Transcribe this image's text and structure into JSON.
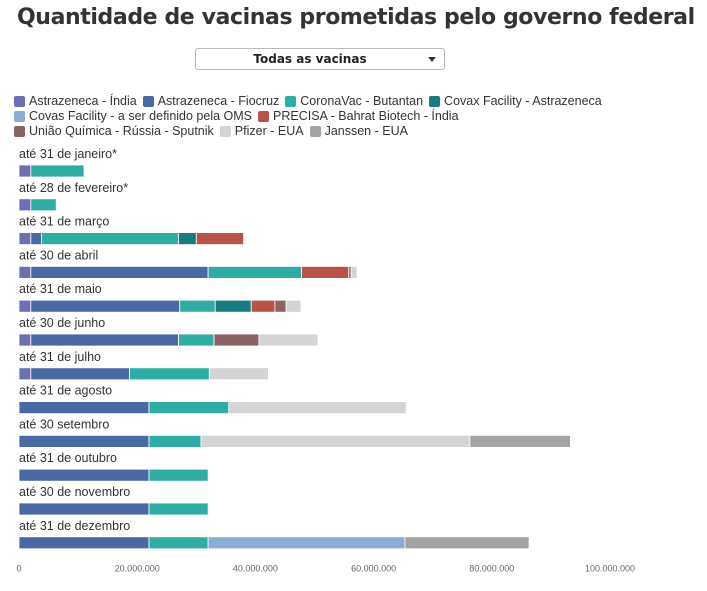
{
  "title": "Quantidade de vacinas prometidas pelo governo federal",
  "dropdown": {
    "selected": "Todas as vacinas"
  },
  "chart_data": {
    "type": "bar",
    "orientation": "horizontal",
    "stacked": true,
    "title": "Quantidade de vacinas prometidas pelo governo federal",
    "xlim": [
      0,
      100000000
    ],
    "ticks": [
      {
        "value": 0,
        "label": "0"
      },
      {
        "value": 20000000,
        "label": "20.000.000"
      },
      {
        "value": 40000000,
        "label": "40.000.000"
      },
      {
        "value": 60000000,
        "label": "60.000.000"
      },
      {
        "value": 80000000,
        "label": "80.000.000"
      },
      {
        "value": 100000000,
        "label": "100.000.000"
      }
    ],
    "grid": false,
    "legend_position": "top",
    "categories": [
      "até 31 de janeiro*",
      "até 28 de fevereiro*",
      "até 31 de março",
      "até 30 de abril",
      "até 31 de maio",
      "até 30 de junho",
      "até 31 de julho",
      "até 31 de agosto",
      "até 30 setembro",
      "até 31 de outubro",
      "até 30 de novembro",
      "até 31 de dezembro"
    ],
    "series": [
      {
        "name": "Astrazeneca - Índia",
        "color": "#6c6fb2",
        "values": [
          2000000,
          2000000,
          2000000,
          2000000,
          2000000,
          2000000,
          2000000,
          0,
          0,
          0,
          0,
          0
        ]
      },
      {
        "name": "Astrazeneca - Fiocruz",
        "color": "#4a69a3",
        "values": [
          0,
          0,
          1800000,
          30000000,
          25200000,
          25000000,
          16700000,
          22000000,
          22000000,
          22000000,
          22000000,
          22000000
        ]
      },
      {
        "name": "CoronaVac - Butantan",
        "color": "#2fada5",
        "values": [
          9000000,
          4300000,
          23200000,
          15800000,
          6000000,
          6000000,
          13500000,
          13500000,
          8800000,
          10000000,
          10000000,
          10000000
        ]
      },
      {
        "name": "Covax Facility - Astrazeneca",
        "color": "#177b80",
        "values": [
          0,
          0,
          3000000,
          0,
          6100000,
          0,
          0,
          0,
          0,
          0,
          0,
          0
        ]
      },
      {
        "name": "Covas Facility - a ser definido pela OMS",
        "color": "#8badd4",
        "values": [
          0,
          0,
          0,
          0,
          0,
          0,
          0,
          0,
          0,
          0,
          0,
          33300000
        ]
      },
      {
        "name": "PRECISA - Bahrat Biotech - Índia",
        "color": "#b85447",
        "values": [
          0,
          0,
          8000000,
          8000000,
          4000000,
          0,
          0,
          0,
          0,
          0,
          0,
          0
        ]
      },
      {
        "name": "União Química - Rússia - Sputnik",
        "color": "#8c6367",
        "values": [
          0,
          0,
          0,
          400000,
          1900000,
          7600000,
          0,
          0,
          0,
          0,
          0,
          0
        ]
      },
      {
        "name": "Pfizer - EUA",
        "color": "#d4d4d4",
        "values": [
          0,
          0,
          0,
          1000000,
          2500000,
          10000000,
          10000000,
          30000000,
          45500000,
          0,
          0,
          0
        ]
      },
      {
        "name": "Janssen - EUA",
        "color": "#a3a3a3",
        "values": [
          0,
          0,
          0,
          0,
          0,
          0,
          0,
          0,
          17000000,
          0,
          0,
          21000000
        ]
      }
    ]
  }
}
